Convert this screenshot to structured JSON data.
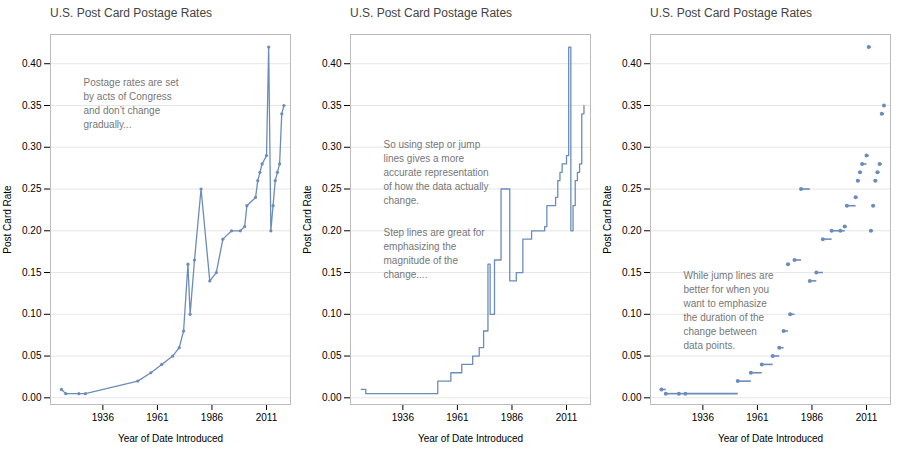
{
  "chart_data": [
    {
      "type": "line",
      "title": "U.S. Post Card Postage Rates",
      "xlabel": "Year of Date Introduced",
      "ylabel": "Post Card Rate",
      "x": [
        1917,
        1919,
        1925,
        1928,
        1952,
        1958,
        1963,
        1968,
        1971,
        1973,
        1975,
        1976,
        1978,
        1981,
        1985,
        1988,
        1991,
        1995,
        1999,
        2001,
        2002,
        2006,
        2007,
        2008,
        2009,
        2011,
        2012,
        2013,
        2014,
        2015,
        2016,
        2017,
        2018,
        2019
      ],
      "values": [
        0.01,
        0.005,
        0.005,
        0.005,
        0.02,
        0.03,
        0.04,
        0.05,
        0.06,
        0.08,
        0.16,
        0.1,
        0.165,
        0.25,
        0.14,
        0.15,
        0.19,
        0.2,
        0.2,
        0.205,
        0.23,
        0.24,
        0.26,
        0.27,
        0.28,
        0.29,
        0.42,
        0.2,
        0.23,
        0.26,
        0.27,
        0.28,
        0.34,
        0.35
      ],
      "color": "#6b8cba",
      "xlim": [
        1912,
        2022
      ],
      "xticks": [
        1936,
        1961,
        1986,
        2011
      ],
      "ylim": [
        -0.008,
        0.435
      ],
      "yticks": [
        {
          "value": 0,
          "label": "0.00"
        },
        0.05,
        {
          "value": 0.1,
          "label": "0.10"
        },
        0.15,
        {
          "value": 0.2,
          "label": "0.20"
        },
        0.25,
        {
          "value": 0.3,
          "label": "0.30"
        },
        0.35,
        {
          "value": 0.4,
          "label": "0.40"
        }
      ],
      "grid": true,
      "annotations": [
        "Postage rates are set\nby acts of Congress\nand don’t change\ngradually..."
      ]
    },
    {
      "type": "step",
      "title": "U.S. Post Card Postage Rates",
      "xlabel": "Year of Date Introduced",
      "ylabel": "Post Card Rate",
      "x": [
        1917,
        1919,
        1925,
        1928,
        1952,
        1958,
        1963,
        1968,
        1971,
        1973,
        1975,
        1976,
        1978,
        1981,
        1985,
        1988,
        1991,
        1995,
        1999,
        2001,
        2002,
        2006,
        2007,
        2008,
        2009,
        2011,
        2012,
        2013,
        2014,
        2015,
        2016,
        2017,
        2018,
        2019
      ],
      "values": [
        0.01,
        0.005,
        0.005,
        0.005,
        0.02,
        0.03,
        0.04,
        0.05,
        0.06,
        0.08,
        0.16,
        0.1,
        0.165,
        0.25,
        0.14,
        0.15,
        0.19,
        0.2,
        0.2,
        0.205,
        0.23,
        0.24,
        0.26,
        0.27,
        0.28,
        0.29,
        0.42,
        0.2,
        0.23,
        0.26,
        0.27,
        0.28,
        0.34,
        0.35
      ],
      "color": "#6b8cba",
      "xlim": [
        1912,
        2022
      ],
      "xticks": [
        1936,
        1961,
        1986,
        2011
      ],
      "ylim": [
        -0.008,
        0.435
      ],
      "yticks": [
        {
          "value": 0,
          "label": "0.00"
        },
        0.05,
        {
          "value": 0.1,
          "label": "0.10"
        },
        0.15,
        {
          "value": 0.2,
          "label": "0.20"
        },
        0.25,
        {
          "value": 0.3,
          "label": "0.30"
        },
        0.35,
        {
          "value": 0.4,
          "label": "0.40"
        }
      ],
      "grid": true,
      "annotations": [
        "So using step or jump\nlines gives a more\naccurate representation\nof how the data actually\nchange.",
        "Step lines are great for\nemphasizing the\nmagnitude of the\nchange...."
      ]
    },
    {
      "type": "jump",
      "title": "U.S. Post Card Postage Rates",
      "xlabel": "Year of Date Introduced",
      "ylabel": "Post Card Rate",
      "x": [
        1917,
        1919,
        1925,
        1928,
        1952,
        1958,
        1963,
        1968,
        1971,
        1973,
        1975,
        1976,
        1978,
        1981,
        1985,
        1988,
        1991,
        1995,
        1999,
        2001,
        2002,
        2006,
        2007,
        2008,
        2009,
        2011,
        2012,
        2013,
        2014,
        2015,
        2016,
        2017,
        2018,
        2019
      ],
      "values": [
        0.01,
        0.005,
        0.005,
        0.005,
        0.02,
        0.03,
        0.04,
        0.05,
        0.06,
        0.08,
        0.16,
        0.1,
        0.165,
        0.25,
        0.14,
        0.15,
        0.19,
        0.2,
        0.2,
        0.205,
        0.23,
        0.24,
        0.26,
        0.27,
        0.28,
        0.29,
        0.42,
        0.2,
        0.23,
        0.26,
        0.27,
        0.28,
        0.34,
        0.35
      ],
      "color": "#6b8cba",
      "xlim": [
        1912,
        2022
      ],
      "xticks": [
        1936,
        1961,
        1986,
        2011
      ],
      "ylim": [
        -0.008,
        0.435
      ],
      "yticks": [
        {
          "value": 0,
          "label": "0.00"
        },
        0.05,
        {
          "value": 0.1,
          "label": "0.10"
        },
        0.15,
        {
          "value": 0.2,
          "label": "0.20"
        },
        0.25,
        {
          "value": 0.3,
          "label": "0.30"
        },
        0.35,
        {
          "value": 0.4,
          "label": "0.40"
        }
      ],
      "grid": true,
      "annotations": [
        "While jump lines are\nbetter for when you\nwant to emphasize\nthe duration of the\nchange between\ndata points."
      ]
    }
  ]
}
